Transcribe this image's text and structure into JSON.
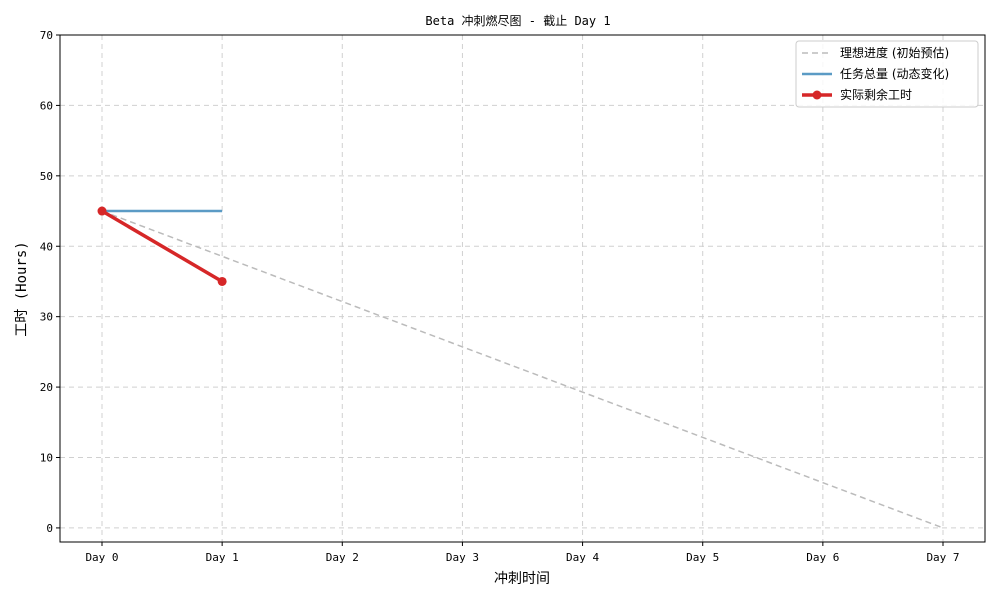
{
  "chart_data": {
    "type": "line",
    "title": "Beta 冲刺燃尽图 - 截止 Day 1",
    "xlabel": "冲刺时间",
    "ylabel": "工时 (Hours)",
    "categories": [
      "Day 0",
      "Day 1",
      "Day 2",
      "Day 3",
      "Day 4",
      "Day 5",
      "Day 6",
      "Day 7"
    ],
    "ylim": [
      -2,
      70
    ],
    "yticks": [
      0,
      10,
      20,
      30,
      40,
      50,
      60,
      70
    ],
    "grid": true,
    "legend_position": "top-right",
    "series": [
      {
        "name": "理想进度 (初始预估)",
        "style": "dashed",
        "color": "#bbbbbb",
        "x": [
          0,
          7
        ],
        "values": [
          45,
          0
        ]
      },
      {
        "name": "任务总量 (动态变化)",
        "style": "solid",
        "color": "#5b9bc5",
        "x": [
          0,
          1
        ],
        "values": [
          45,
          45
        ]
      },
      {
        "name": "实际剩余工时",
        "style": "solid-marker",
        "color": "#d62728",
        "x": [
          0,
          1
        ],
        "values": [
          45,
          35
        ]
      }
    ]
  }
}
